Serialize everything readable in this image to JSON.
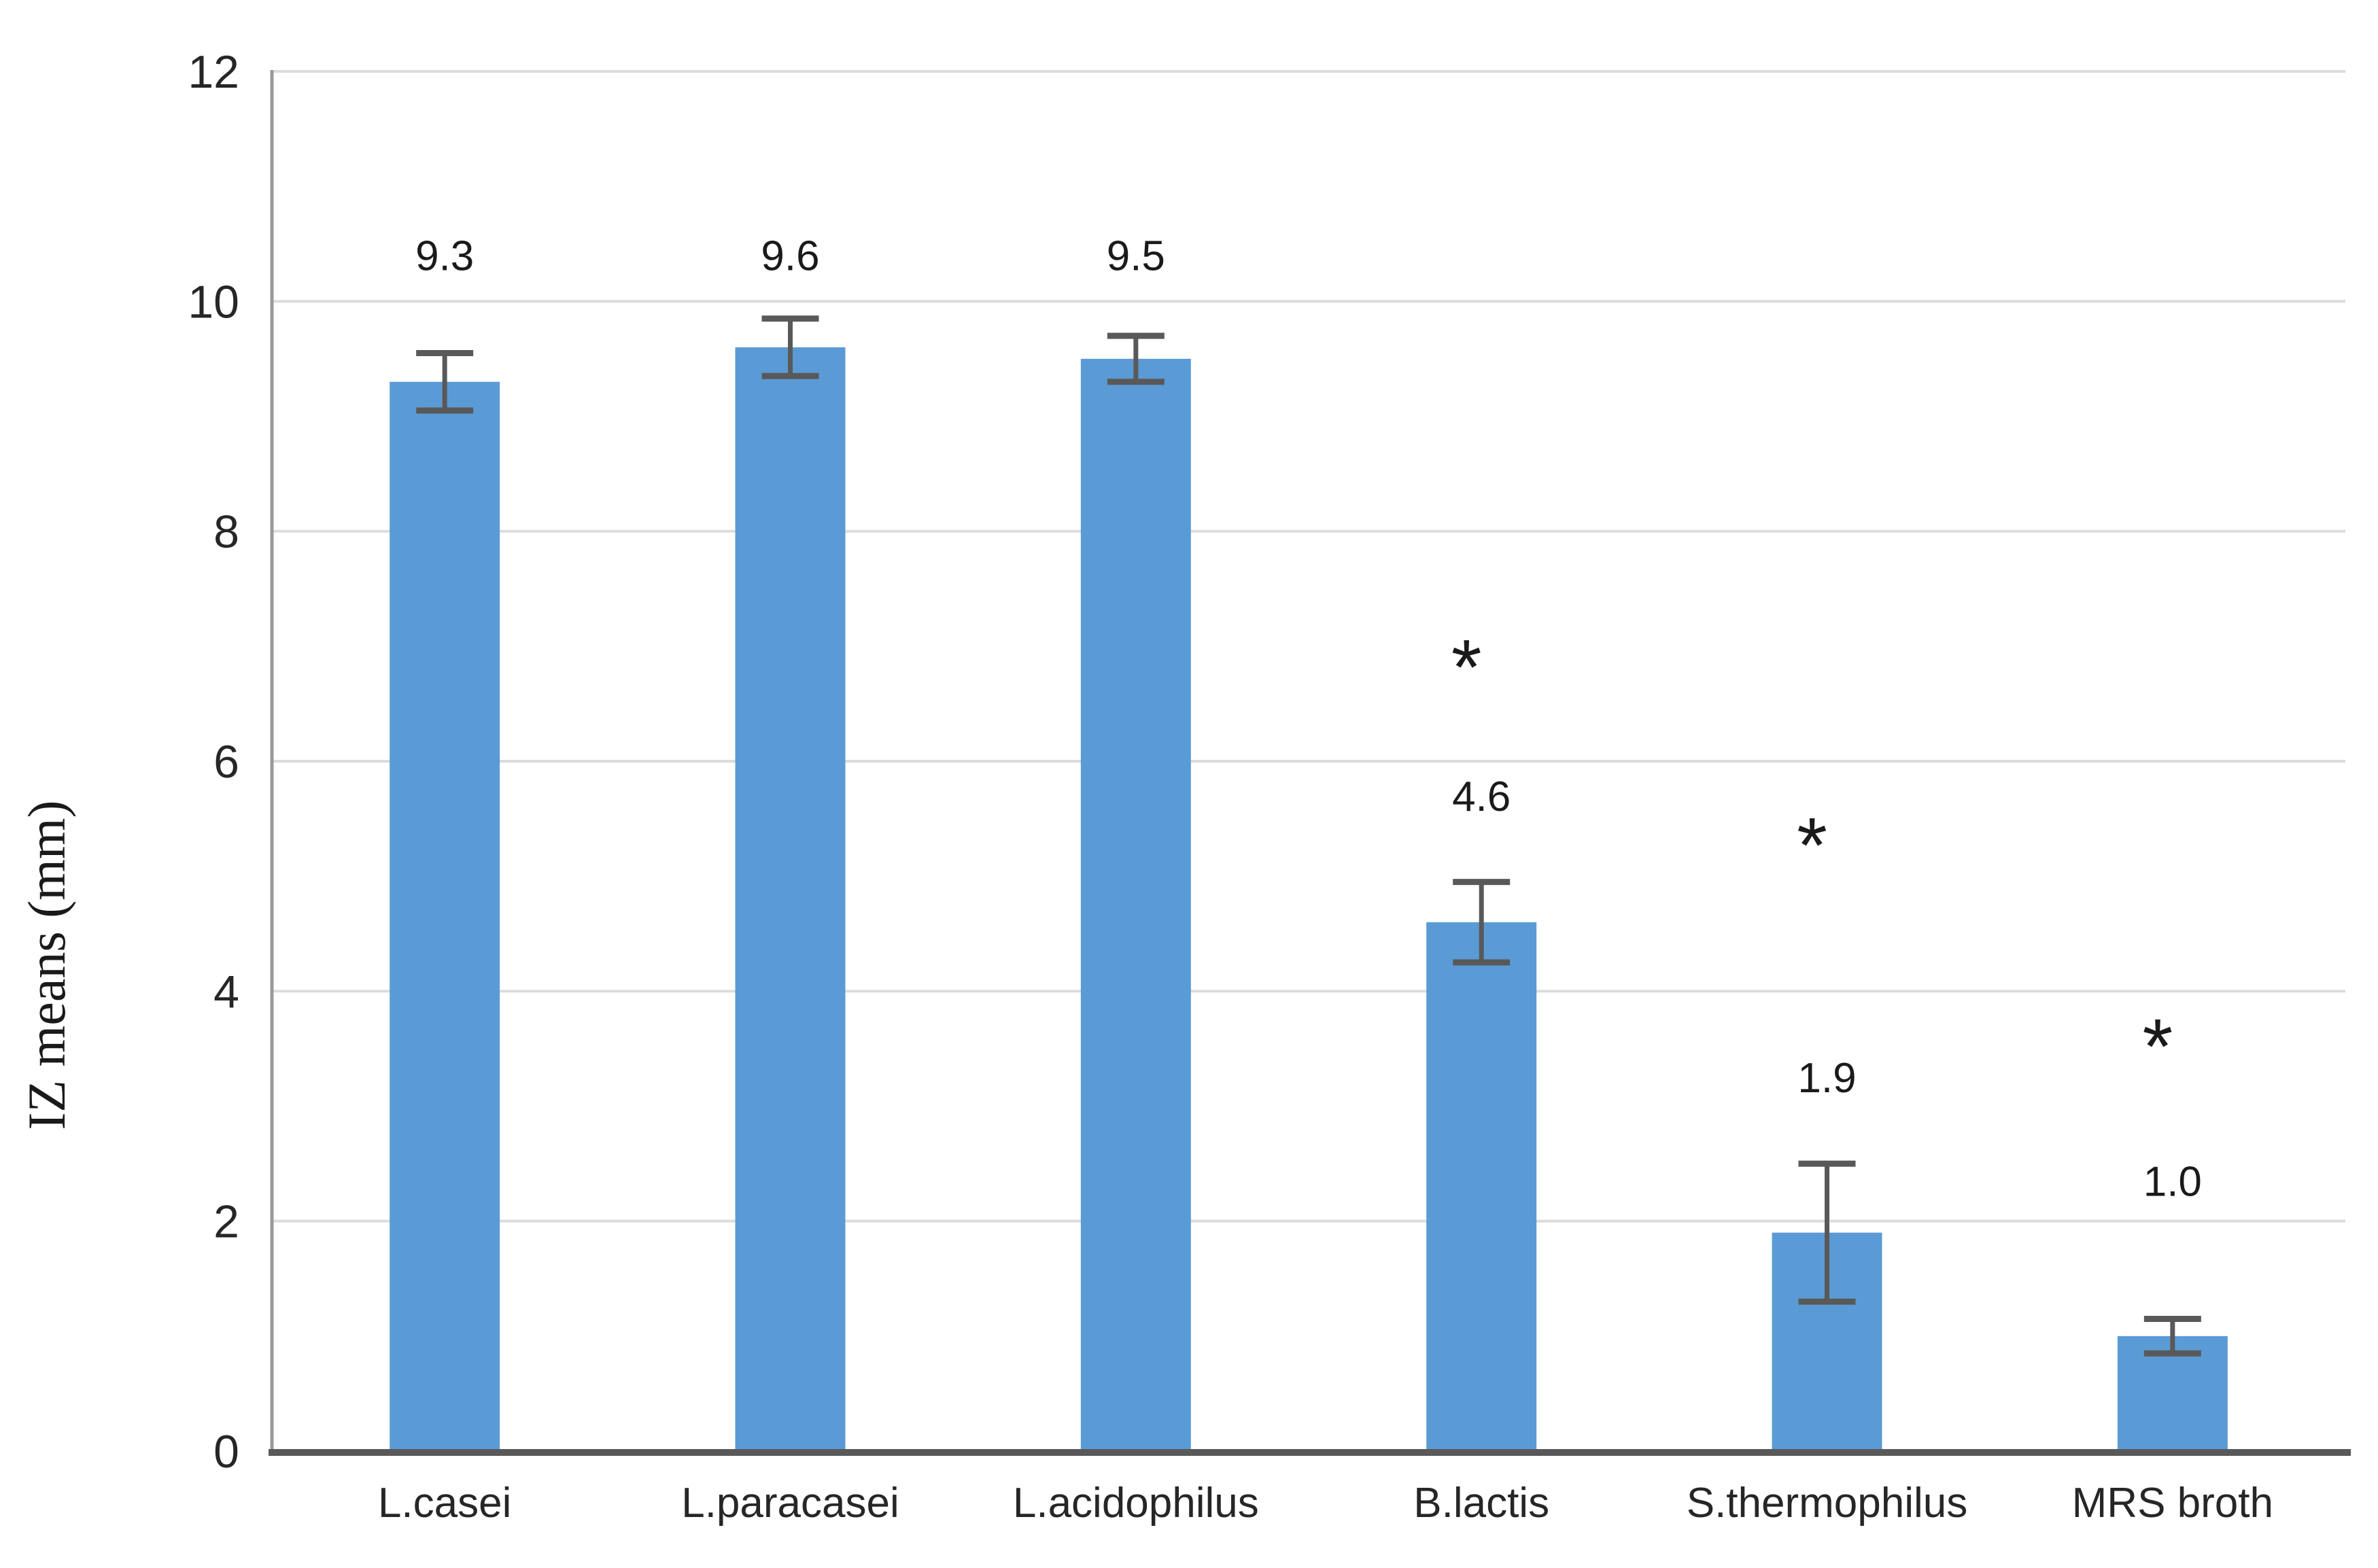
{
  "chart_data": {
    "type": "bar",
    "title": "",
    "ylabel": "IZ means (mm)",
    "xlabel": "",
    "ylim": [
      0,
      12
    ],
    "yticks": [
      0,
      2,
      4,
      6,
      8,
      10,
      12
    ],
    "ytick_labels": [
      "0",
      "2",
      "4",
      "6",
      "8",
      "10",
      "12"
    ],
    "grid": true,
    "legend": "none",
    "categories": [
      "L.casei",
      "L.paracasei",
      "L.acidophilus",
      "B.lactis",
      "S.thermophilus",
      "MRS broth"
    ],
    "series": [
      {
        "name": "IZ means",
        "values": [
          9.3,
          9.6,
          9.5,
          4.6,
          1.9,
          1.0
        ],
        "error_bars": [
          0.25,
          0.25,
          0.2,
          0.35,
          0.6,
          0.15
        ]
      }
    ],
    "data_labels": [
      "9.3",
      "9.6",
      "9.5",
      "4.6",
      "1.9",
      "1.0"
    ],
    "data_label_y_values": [
      10.4,
      10.4,
      10.4,
      5.7,
      3.25,
      2.35
    ],
    "significance_markers": [
      "",
      "",
      "",
      "*",
      "*",
      "*"
    ],
    "significance_y_values": [
      null,
      null,
      null,
      6.95,
      5.4,
      3.65
    ],
    "colors": {
      "bar": "#5B9BD5",
      "gridline": "#DCDCDC",
      "y_axis_line": "#9A9A9A",
      "x_axis_line": "#595959",
      "error_bar": "#595959",
      "text": "#262626"
    }
  }
}
